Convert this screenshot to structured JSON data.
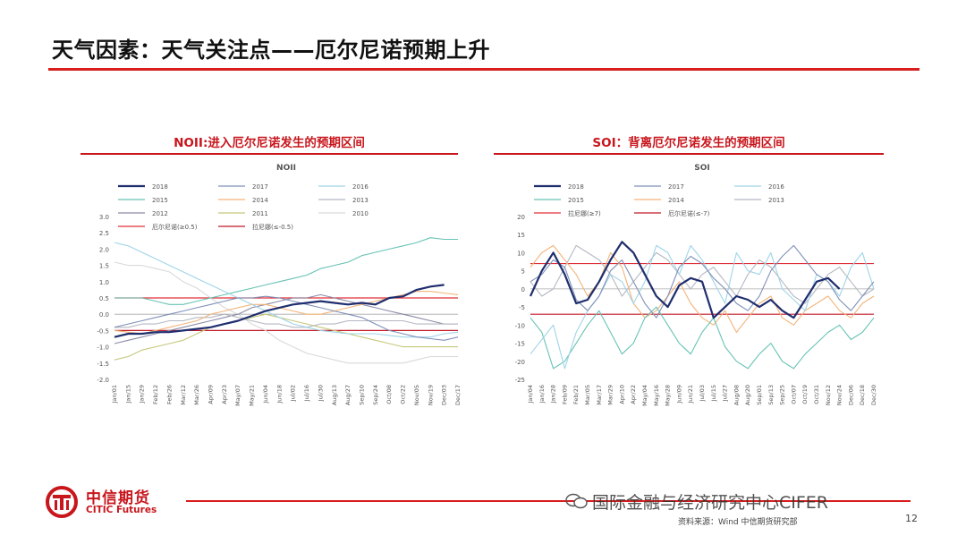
{
  "slide": {
    "title": "天气因素：天气关注点——厄尔尼诺预期上升",
    "page_number": "12",
    "source": "资料来源：Wind  中信期货研究部",
    "watermark": "国际金融与经济研究中心CIFER"
  },
  "logo": {
    "cn": "中信期货",
    "en": "CITIC Futures"
  },
  "colors": {
    "accent": "#d81e1e",
    "panel_title": "#c8161d"
  },
  "chart_data": [
    {
      "type": "line",
      "panel_title": "NOII:进入厄尔尼诺发生的预期区间",
      "title": "NOII",
      "ylim": [
        -2.0,
        3.0
      ],
      "yticks": [
        "3.0",
        "2.5",
        "2.0",
        "1.5",
        "1.0",
        "0.5",
        "0.0",
        "-0.5",
        "-1.0",
        "-1.5",
        "-2.0"
      ],
      "x": [
        "Jan/01",
        "Jan/15",
        "Jan/29",
        "Feb/12",
        "Feb/26",
        "Mar/12",
        "Mar/26",
        "Apr/09",
        "Apr/23",
        "May/07",
        "May/21",
        "Jun/04",
        "Jun/18",
        "Jul/02",
        "Jul/16",
        "Jul/30",
        "Aug/13",
        "Aug/27",
        "Sep/10",
        "Sep/24",
        "Oct/08",
        "Oct/22",
        "Nov/05",
        "Nov/19",
        "Dec/03",
        "Dec/17"
      ],
      "series": [
        {
          "name": "2018",
          "color": "#1f2e6e",
          "width": 2.2,
          "values": [
            -0.7,
            -0.6,
            -0.6,
            -0.55,
            -0.55,
            -0.5,
            -0.45,
            -0.4,
            -0.3,
            -0.2,
            -0.05,
            0.1,
            0.2,
            0.3,
            0.35,
            0.4,
            0.35,
            0.3,
            0.35,
            0.3,
            0.5,
            0.55,
            0.75,
            0.85,
            0.9,
            null
          ]
        },
        {
          "name": "2017",
          "color": "#7f90b8",
          "values": [
            -0.4,
            -0.3,
            -0.2,
            -0.1,
            0.0,
            0.1,
            0.2,
            0.3,
            0.4,
            0.5,
            0.5,
            0.55,
            0.5,
            0.4,
            0.3,
            0.2,
            0.1,
            0.0,
            -0.1,
            -0.3,
            -0.5,
            -0.6,
            -0.7,
            -0.75,
            -0.8,
            -0.7
          ]
        },
        {
          "name": "2016",
          "color": "#9fd4e8",
          "values": [
            2.2,
            2.1,
            1.9,
            1.7,
            1.5,
            1.3,
            1.1,
            0.9,
            0.7,
            0.5,
            0.3,
            0.1,
            -0.1,
            -0.3,
            -0.4,
            -0.5,
            -0.55,
            -0.6,
            -0.6,
            -0.6,
            -0.65,
            -0.7,
            -0.7,
            -0.7,
            -0.6,
            -0.55
          ]
        },
        {
          "name": "2015",
          "color": "#68c3b5",
          "values": [
            0.5,
            0.5,
            0.5,
            0.4,
            0.3,
            0.3,
            0.4,
            0.5,
            0.6,
            0.7,
            0.8,
            0.9,
            1.0,
            1.1,
            1.2,
            1.4,
            1.5,
            1.6,
            1.8,
            1.9,
            2.0,
            2.1,
            2.2,
            2.35,
            2.3,
            2.3
          ]
        },
        {
          "name": "2014",
          "color": "#f3b47a",
          "values": [
            -0.5,
            -0.55,
            -0.6,
            -0.5,
            -0.4,
            -0.3,
            -0.2,
            0.0,
            0.1,
            0.2,
            0.3,
            0.3,
            0.2,
            0.1,
            0.0,
            0.0,
            0.1,
            0.2,
            0.3,
            0.4,
            0.5,
            0.6,
            0.7,
            0.7,
            0.65,
            0.6
          ]
        },
        {
          "name": "2013",
          "color": "#b5b8c2",
          "values": [
            -0.4,
            -0.4,
            -0.3,
            -0.3,
            -0.2,
            -0.2,
            -0.1,
            -0.1,
            0.0,
            -0.1,
            -0.2,
            -0.3,
            -0.3,
            -0.4,
            -0.4,
            -0.3,
            -0.3,
            -0.2,
            -0.2,
            -0.2,
            -0.2,
            -0.2,
            -0.3,
            -0.3,
            -0.3,
            -0.3
          ]
        },
        {
          "name": "2012",
          "color": "#8a8aa8",
          "values": [
            -0.9,
            -0.8,
            -0.7,
            -0.6,
            -0.5,
            -0.4,
            -0.3,
            -0.2,
            -0.1,
            0.0,
            0.2,
            0.3,
            0.4,
            0.5,
            0.5,
            0.6,
            0.5,
            0.4,
            0.3,
            0.2,
            0.1,
            0.0,
            -0.1,
            -0.2,
            -0.3,
            -0.3
          ]
        },
        {
          "name": "2011",
          "color": "#c6c87a",
          "values": [
            -1.4,
            -1.3,
            -1.1,
            -1.0,
            -0.9,
            -0.8,
            -0.6,
            -0.4,
            -0.3,
            -0.2,
            -0.1,
            0.0,
            -0.1,
            -0.2,
            -0.3,
            -0.4,
            -0.5,
            -0.6,
            -0.7,
            -0.8,
            -0.9,
            -1.0,
            -1.0,
            -1.0,
            -1.0,
            -1.0
          ]
        },
        {
          "name": "2010",
          "color": "#d9d9d9",
          "values": [
            1.6,
            1.5,
            1.5,
            1.4,
            1.3,
            1.0,
            0.8,
            0.5,
            0.2,
            0.0,
            -0.3,
            -0.5,
            -0.8,
            -1.0,
            -1.2,
            -1.3,
            -1.4,
            -1.5,
            -1.5,
            -1.5,
            -1.5,
            -1.5,
            -1.4,
            -1.3,
            -1.3,
            -1.3
          ]
        }
      ],
      "thresholds": [
        {
          "name": "厄尔尼诺(≥0.5)",
          "value": 0.5,
          "color": "#e0303a"
        },
        {
          "name": "拉尼娜(≤-0.5)",
          "value": -0.5,
          "color": "#c01a2a"
        }
      ],
      "grid": false,
      "legend": "top"
    },
    {
      "type": "line",
      "panel_title": "SOI：背离厄尔尼诺发生的预期区间",
      "title": "SOI",
      "ylim": [
        -25,
        20
      ],
      "yticks": [
        "20",
        "15",
        "10",
        "5",
        "0",
        "-5",
        "-10",
        "-15",
        "-20",
        "-25"
      ],
      "x": [
        "Jan/04",
        "Jan/16",
        "Jan/28",
        "Feb/09",
        "Feb/21",
        "Mar/05",
        "Mar/17",
        "Mar/29",
        "Apr/10",
        "Apr/22",
        "May/04",
        "May/16",
        "May/28",
        "Jun/09",
        "Jun/21",
        "Jul/03",
        "Jul/15",
        "Jul/27",
        "Aug/08",
        "Aug/20",
        "Sep/01",
        "Sep/13",
        "Sep/25",
        "Oct/07",
        "Oct/19",
        "Oct/31",
        "Nov/12",
        "Nov/24",
        "Dec/06",
        "Dec/18",
        "Dec/30"
      ],
      "series": [
        {
          "name": "2018",
          "color": "#1f2e6e",
          "width": 2.2,
          "values": [
            -2,
            5,
            10,
            4,
            -4,
            -3,
            2,
            8,
            13,
            10,
            4,
            -2,
            -5,
            1,
            3,
            2,
            -8,
            -5,
            -2,
            -3,
            -5,
            -3,
            -6,
            -8,
            -3,
            2,
            3,
            0,
            null,
            null,
            null
          ]
        },
        {
          "name": "2017",
          "color": "#7f90b8",
          "values": [
            2,
            4,
            8,
            6,
            -3,
            -6,
            -2,
            5,
            8,
            2,
            -4,
            -8,
            -2,
            6,
            9,
            7,
            3,
            0,
            -4,
            -6,
            -2,
            5,
            9,
            12,
            8,
            4,
            2,
            -3,
            -6,
            -2,
            2
          ]
        },
        {
          "name": "2016",
          "color": "#9fd4e8",
          "values": [
            -18,
            -14,
            -10,
            -22,
            -12,
            -6,
            -2,
            4,
            2,
            -4,
            2,
            12,
            10,
            4,
            12,
            8,
            2,
            -4,
            10,
            5,
            4,
            10,
            0,
            -3,
            -6,
            4,
            2,
            -2,
            6,
            10,
            0
          ]
        },
        {
          "name": "2015",
          "color": "#68c3b5",
          "values": [
            -8,
            -12,
            -22,
            -20,
            -15,
            -10,
            -6,
            -12,
            -18,
            -15,
            -8,
            -5,
            -10,
            -15,
            -18,
            -12,
            -8,
            -16,
            -20,
            -22,
            -18,
            -15,
            -20,
            -22,
            -18,
            -15,
            -12,
            -10,
            -14,
            -12,
            -8
          ]
        },
        {
          "name": "2014",
          "color": "#f3b47a",
          "values": [
            6,
            10,
            12,
            8,
            4,
            -2,
            2,
            10,
            6,
            -4,
            -8,
            -6,
            -2,
            2,
            -4,
            -8,
            -10,
            -6,
            -12,
            -8,
            -4,
            -2,
            -8,
            -10,
            -6,
            -4,
            -2,
            -6,
            -8,
            -4,
            -2
          ]
        },
        {
          "name": "2013",
          "color": "#b5b8c2",
          "values": [
            2,
            -2,
            0,
            6,
            12,
            10,
            8,
            4,
            -2,
            2,
            6,
            10,
            8,
            4,
            0,
            4,
            6,
            2,
            -2,
            4,
            8,
            6,
            2,
            -2,
            -4,
            0,
            4,
            6,
            2,
            -2,
            0
          ]
        }
      ],
      "thresholds": [
        {
          "name": "拉尼娜(≥7)",
          "value": 7,
          "color": "#e0303a"
        },
        {
          "name": "厄尔尼诺(≤-7)",
          "value": -7,
          "color": "#c01a2a"
        }
      ],
      "grid": false,
      "legend": "top"
    }
  ]
}
